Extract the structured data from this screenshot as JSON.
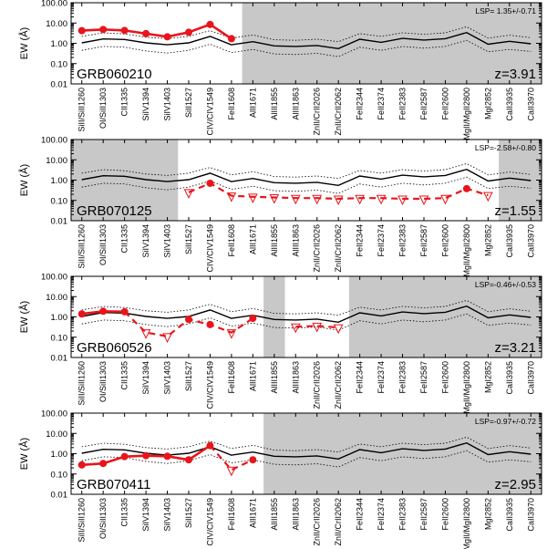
{
  "chart_data": [
    {
      "type": "line",
      "grb": "GRB060210",
      "redshift_label": "z=3.91",
      "lsp": "LSP= 1.35+/-0.71",
      "ylabel": "EW (Å)",
      "yscale": "log",
      "ylim": [
        0.01,
        100
      ],
      "yticks": [
        "100.00",
        "10.00",
        "1.00",
        "0.10",
        "0.01"
      ],
      "categories": [
        "SiII/SiII1260",
        "OI/SiII1303",
        "CII1335",
        "SiIV1394",
        "SiIV1403",
        "SiII1527",
        "CIV/CIV1549",
        "FeII1608",
        "AlII1671",
        "AlIII1855",
        "AlIII1863",
        "ZnII/CrII2026",
        "ZnII/CrII2062",
        "FeII2344",
        "FeII2374",
        "FeII2383",
        "FeII2587",
        "FeII2600",
        "MgII/MgII2800",
        "MgI2852",
        "CaII3935",
        "CaII3970"
      ],
      "shaded_index_ranges": [
        [
          8,
          21
        ]
      ],
      "template": [
        1.05,
        1.65,
        1.55,
        1.05,
        0.85,
        1.05,
        2.2,
        0.85,
        1.2,
        0.75,
        0.7,
        0.78,
        0.55,
        1.6,
        1.12,
        1.75,
        1.45,
        1.7,
        3.4,
        0.9,
        1.25,
        0.95
      ],
      "template_upper": [
        2.2,
        3.3,
        2.9,
        2.0,
        1.7,
        2.2,
        4.2,
        1.8,
        2.6,
        1.5,
        1.4,
        1.6,
        1.2,
        3.0,
        2.2,
        3.3,
        2.8,
        3.3,
        6.5,
        1.8,
        2.5,
        1.9
      ],
      "template_lower": [
        0.45,
        0.7,
        0.65,
        0.42,
        0.33,
        0.45,
        0.9,
        0.35,
        0.5,
        0.3,
        0.28,
        0.32,
        0.22,
        0.65,
        0.45,
        0.7,
        0.58,
        0.7,
        1.4,
        0.38,
        0.5,
        0.4
      ],
      "detections": [
        [
          0,
          4.2
        ],
        [
          1,
          4.8
        ],
        [
          2,
          4.3
        ],
        [
          3,
          3.0
        ],
        [
          4,
          2.1
        ],
        [
          5,
          3.5
        ],
        [
          6,
          8.5
        ],
        [
          7,
          1.7
        ]
      ],
      "solid_segments": [
        [
          0,
          7
        ]
      ],
      "dashed_segments": [],
      "upper_limits": []
    },
    {
      "type": "line",
      "grb": "GRB070125",
      "redshift_label": "z=1.55",
      "lsp": "LSP=-2.58+/-0.80",
      "ylabel": "EW (Å)",
      "yscale": "log",
      "ylim": [
        0.01,
        100
      ],
      "yticks": [
        "100.00",
        "10.00",
        "1.00",
        "0.10",
        "0.01"
      ],
      "categories": [
        "SiII/SiII1260",
        "OI/SiII1303",
        "CII1335",
        "SiIV1394",
        "SiIV1403",
        "SiII1527",
        "CIV/CIV1549",
        "FeII1608",
        "AlII1671",
        "AlIII1855",
        "AlIII1863",
        "ZnII/CrII2026",
        "ZnII/CrII2062",
        "FeII2344",
        "FeII2374",
        "FeII2383",
        "FeII2587",
        "FeII2600",
        "MgII/MgII2800",
        "MgI2852",
        "CaII3935",
        "CaII3970"
      ],
      "shaded_index_ranges": [
        [
          0,
          4
        ],
        [
          20,
          21
        ]
      ],
      "template": [
        1.05,
        1.65,
        1.55,
        1.05,
        0.85,
        1.05,
        2.2,
        0.85,
        1.2,
        0.75,
        0.7,
        0.78,
        0.55,
        1.6,
        1.12,
        1.75,
        1.45,
        1.7,
        3.4,
        0.9,
        1.25,
        0.95
      ],
      "template_upper": [
        2.2,
        3.3,
        2.9,
        2.0,
        1.7,
        2.2,
        4.2,
        1.8,
        2.6,
        1.5,
        1.4,
        1.6,
        1.2,
        3.0,
        2.2,
        3.3,
        2.8,
        3.3,
        6.5,
        1.8,
        2.5,
        1.9
      ],
      "template_lower": [
        0.45,
        0.7,
        0.65,
        0.42,
        0.33,
        0.45,
        0.9,
        0.35,
        0.5,
        0.3,
        0.28,
        0.32,
        0.22,
        0.65,
        0.45,
        0.7,
        0.58,
        0.7,
        1.4,
        0.38,
        0.5,
        0.4
      ],
      "detections": [
        [
          6,
          0.7
        ],
        [
          18,
          0.38
        ]
      ],
      "solid_segments": [],
      "dashed_segments": [
        [
          5,
          19
        ]
      ],
      "upper_limits": [
        [
          5,
          0.25
        ],
        [
          7,
          0.17
        ],
        [
          8,
          0.15
        ],
        [
          9,
          0.14
        ],
        [
          10,
          0.13
        ],
        [
          11,
          0.13
        ],
        [
          12,
          0.12
        ],
        [
          13,
          0.13
        ],
        [
          14,
          0.13
        ],
        [
          15,
          0.12
        ],
        [
          16,
          0.12
        ],
        [
          17,
          0.13
        ],
        [
          19,
          0.18
        ]
      ]
    },
    {
      "type": "line",
      "grb": "GRB060526",
      "redshift_label": "z=3.21",
      "lsp": "LSP=-0.46+/-0.53",
      "ylabel": "EW (Å)",
      "yscale": "log",
      "ylim": [
        0.01,
        100
      ],
      "yticks": [
        "100.00",
        "10.00",
        "1.00",
        "0.10",
        "0.01"
      ],
      "categories": [
        "SiII/SiII1260",
        "OI/SiII1303",
        "CII1335",
        "SiIV1394",
        "SiIV1403",
        "SiII1527",
        "CIV/CIV1549",
        "FeII1608",
        "AlII1671",
        "AlIII1855",
        "AlIII1863",
        "ZnII/CrII2026",
        "ZnII/CrII2062",
        "FeII2344",
        "FeII2374",
        "FeII2383",
        "FeII2587",
        "FeII2600",
        "MgII/MgII2800",
        "MgI2852",
        "CaII3935",
        "CaII3970"
      ],
      "shaded_index_ranges": [
        [
          9,
          9
        ],
        [
          13,
          21
        ]
      ],
      "template": [
        1.05,
        1.65,
        1.55,
        1.05,
        0.85,
        1.05,
        2.2,
        0.85,
        1.2,
        0.75,
        0.7,
        0.78,
        0.55,
        1.6,
        1.12,
        1.75,
        1.45,
        1.7,
        3.4,
        0.9,
        1.25,
        0.95
      ],
      "template_upper": [
        2.2,
        3.3,
        2.9,
        2.0,
        1.7,
        2.2,
        4.2,
        1.8,
        2.6,
        1.5,
        1.4,
        1.6,
        1.2,
        3.0,
        2.2,
        3.3,
        2.8,
        3.3,
        6.5,
        1.8,
        2.5,
        1.9
      ],
      "template_lower": [
        0.45,
        0.7,
        0.65,
        0.42,
        0.33,
        0.45,
        0.9,
        0.35,
        0.5,
        0.3,
        0.28,
        0.32,
        0.22,
        0.65,
        0.45,
        0.7,
        0.58,
        0.7,
        1.4,
        0.38,
        0.5,
        0.4
      ],
      "detections": [
        [
          0,
          1.4
        ],
        [
          1,
          1.9
        ],
        [
          2,
          1.8
        ],
        [
          5,
          0.75
        ],
        [
          6,
          0.42
        ],
        [
          8,
          0.85
        ]
      ],
      "solid_segments": [
        [
          0,
          2
        ]
      ],
      "dashed_segments": [
        [
          2,
          8
        ],
        [
          10,
          12
        ]
      ],
      "upper_limits": [
        [
          3,
          0.17
        ],
        [
          4,
          0.11
        ],
        [
          7,
          0.17
        ],
        [
          10,
          0.33
        ],
        [
          11,
          0.36
        ],
        [
          12,
          0.3
        ]
      ]
    },
    {
      "type": "line",
      "grb": "GRB070411",
      "redshift_label": "z=2.95",
      "lsp": "LSP=-0.97+/-0.72",
      "ylabel": "EW (Å)",
      "yscale": "log",
      "ylim": [
        0.01,
        100
      ],
      "yticks": [
        "100.00",
        "10.00",
        "1.00",
        "0.10",
        "0.01"
      ],
      "categories": [
        "SiII/SiII1260",
        "OI/SiII1303",
        "CII1335",
        "SiIV1394",
        "SiIV1403",
        "SiII1527",
        "CIV/CIV1549",
        "FeII1608",
        "AlII1671",
        "AlIII1855",
        "AlIII1863",
        "ZnII/CrII2026",
        "ZnII/CrII2062",
        "FeII2344",
        "FeII2374",
        "FeII2383",
        "FeII2587",
        "FeII2600",
        "MgII/MgII2800",
        "MgI2852",
        "CaII3935",
        "CaII3970"
      ],
      "shaded_index_ranges": [
        [
          9,
          21
        ]
      ],
      "template": [
        1.05,
        1.65,
        1.55,
        1.05,
        0.85,
        1.05,
        2.2,
        0.85,
        1.2,
        0.75,
        0.7,
        0.78,
        0.55,
        1.6,
        1.12,
        1.75,
        1.45,
        1.7,
        3.4,
        0.9,
        1.25,
        0.95
      ],
      "template_upper": [
        2.2,
        3.3,
        2.9,
        2.0,
        1.7,
        2.2,
        4.2,
        1.8,
        2.6,
        1.5,
        1.4,
        1.6,
        1.2,
        3.0,
        2.2,
        3.3,
        2.8,
        3.3,
        6.5,
        1.8,
        2.5,
        1.9
      ],
      "template_lower": [
        0.45,
        0.7,
        0.65,
        0.42,
        0.33,
        0.45,
        0.9,
        0.35,
        0.5,
        0.3,
        0.28,
        0.32,
        0.22,
        0.65,
        0.45,
        0.7,
        0.58,
        0.7,
        1.4,
        0.38,
        0.5,
        0.4
      ],
      "detections": [
        [
          0,
          0.28
        ],
        [
          1,
          0.33
        ],
        [
          2,
          0.72
        ],
        [
          3,
          0.8
        ],
        [
          4,
          0.75
        ],
        [
          5,
          0.5
        ],
        [
          6,
          2.5
        ],
        [
          8,
          0.5
        ]
      ],
      "solid_segments": [
        [
          0,
          6
        ]
      ],
      "dashed_segments": [
        [
          6,
          8
        ]
      ],
      "upper_limits": [
        [
          7,
          0.16
        ]
      ]
    }
  ]
}
